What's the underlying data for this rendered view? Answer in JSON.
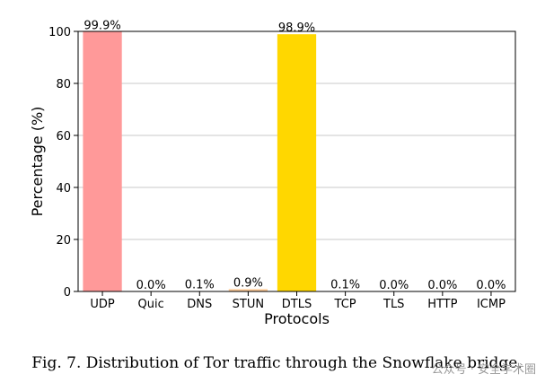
{
  "chart_data": {
    "type": "bar",
    "categories": [
      "UDP",
      "Quic",
      "DNS",
      "STUN",
      "DTLS",
      "TCP",
      "TLS",
      "HTTP",
      "ICMP"
    ],
    "values": [
      99.9,
      0.0,
      0.1,
      0.9,
      98.9,
      0.1,
      0.0,
      0.0,
      0.0
    ],
    "data_labels": [
      "99.9%",
      "0.0%",
      "0.1%",
      "0.9%",
      "98.9%",
      "0.1%",
      "0.0%",
      "0.0%",
      "0.0%"
    ],
    "colors": [
      "#ff9999",
      "#66b3ff",
      "#99ff99",
      "#ffcc99",
      "#ffd700",
      "#c2c2f0",
      "#ffb3e6",
      "#c4e17f",
      "#76d7c4"
    ],
    "xlabel": "Protocols",
    "ylabel": "Percentage (%)",
    "ylim": [
      0,
      100
    ],
    "yticks": [
      0,
      20,
      40,
      60,
      80,
      100
    ],
    "grid": "y"
  },
  "caption": "Fig. 7.  Distribution of Tor traffic through the Snowflake bridge.",
  "watermark": "公众号 · 安全学术圈"
}
